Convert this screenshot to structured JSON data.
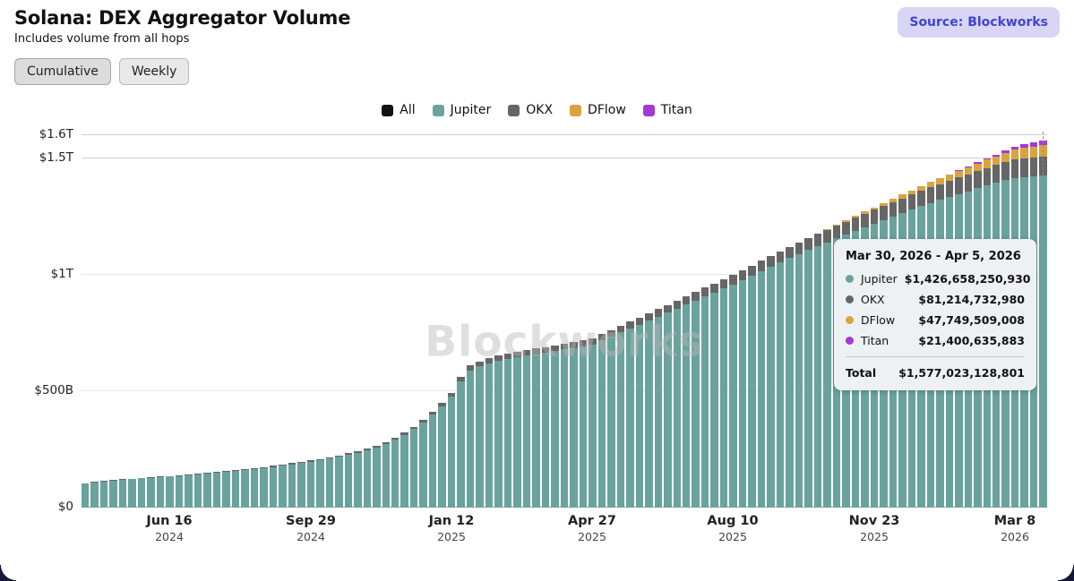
{
  "header": {
    "title": "Solana: DEX Aggregator Volume",
    "subtitle": "Includes volume from all hops",
    "source_label": "Source: Blockworks"
  },
  "toolbar": {
    "buttons": [
      {
        "label": "Cumulative",
        "active": true
      },
      {
        "label": "Weekly",
        "active": false
      }
    ]
  },
  "legend": [
    {
      "label": "All",
      "color": "#111111"
    },
    {
      "label": "Jupiter",
      "color": "#6aa39e"
    },
    {
      "label": "OKX",
      "color": "#666666"
    },
    {
      "label": "DFlow",
      "color": "#d9a440"
    },
    {
      "label": "Titan",
      "color": "#a43ad6"
    }
  ],
  "watermark": "Blockworks",
  "tooltip": {
    "title": "Mar 30, 2026 - Apr 5, 2026",
    "rows": [
      {
        "label": "Jupiter",
        "color": "#6aa39e",
        "value": "$1,426,658,250,930"
      },
      {
        "label": "OKX",
        "color": "#666666",
        "value": "$81,214,732,980"
      },
      {
        "label": "DFlow",
        "color": "#d9a440",
        "value": "$47,749,509,008"
      },
      {
        "label": "Titan",
        "color": "#a43ad6",
        "value": "$21,400,635,883"
      }
    ],
    "total_label": "Total",
    "total_value": "$1,577,023,128,801"
  },
  "chart_data": {
    "type": "bar",
    "stacked": true,
    "title": "Solana: DEX Aggregator Volume (Cumulative)",
    "unit": "billions USD",
    "ylim": [
      0,
      1615
    ],
    "grid": true,
    "legend_position": "top-center",
    "highlight_index": 102,
    "y_ticks": [
      {
        "value": 1600,
        "label": "$1.6T",
        "weight": "strong"
      },
      {
        "value": 1500,
        "label": "$1.5T",
        "weight": "strong"
      },
      {
        "value": 1000,
        "label": "$1T",
        "weight": "faint"
      },
      {
        "value": 500,
        "label": "$500B",
        "weight": "faint"
      },
      {
        "value": 0,
        "label": "$0",
        "weight": "axis"
      }
    ],
    "x_ticks": [
      {
        "index": 9,
        "label": "Jun 16",
        "year": "2024"
      },
      {
        "index": 24,
        "label": "Sep 29",
        "year": "2024"
      },
      {
        "index": 39,
        "label": "Jan 12",
        "year": "2025"
      },
      {
        "index": 54,
        "label": "Apr 27",
        "year": "2025"
      },
      {
        "index": 69,
        "label": "Aug 10",
        "year": "2025"
      },
      {
        "index": 84,
        "label": "Nov 23",
        "year": "2025"
      },
      {
        "index": 99,
        "label": "Mar 8",
        "year": "2026"
      }
    ],
    "series": [
      {
        "name": "Jupiter",
        "color": "#6aa39e",
        "values": [
          103,
          108,
          112,
          116,
          119,
          122,
          125,
          128,
          130,
          133,
          136,
          139,
          143,
          146,
          150,
          154,
          158,
          162,
          166,
          171,
          175,
          180,
          186,
          192,
          197,
          203,
          210,
          218,
          226,
          236,
          247,
          259,
          274,
          291,
          312,
          337,
          366,
          399,
          436,
          476,
          542,
          590,
          607,
          620,
          630,
          639,
          646,
          653,
          659,
          666,
          672,
          679,
          685,
          693,
          700,
          718,
          734,
          752,
          769,
          786,
          803,
          820,
          837,
          854,
          871,
          889,
          907,
          924,
          941,
          959,
          977,
          996,
          1015,
          1034,
          1052,
          1071,
          1088,
          1106,
          1123,
          1140,
          1156,
          1172,
          1189,
          1205,
          1220,
          1235,
          1250,
          1265,
          1279,
          1294,
          1308,
          1322,
          1334,
          1347,
          1359,
          1372,
          1383,
          1395,
          1406,
          1416,
          1420,
          1423,
          1426.66
        ]
      },
      {
        "name": "OKX",
        "color": "#666666",
        "values": [
          2,
          2,
          2,
          2,
          3,
          3,
          3,
          3,
          3,
          3,
          3,
          3,
          3,
          4,
          4,
          4,
          4,
          4,
          4,
          4,
          5,
          5,
          5,
          5,
          6,
          6,
          6,
          6,
          7,
          7,
          7,
          8,
          8,
          9,
          10,
          11,
          12,
          13,
          14,
          16,
          18,
          20,
          21,
          21,
          22,
          22,
          23,
          23,
          24,
          24,
          25,
          25,
          26,
          26,
          27,
          27,
          29,
          29,
          30,
          31,
          32,
          33,
          34,
          35,
          36,
          37,
          38,
          39,
          41,
          41,
          43,
          44,
          45,
          46,
          48,
          48,
          50,
          51,
          52,
          53,
          55,
          56,
          57,
          58,
          60,
          61,
          62,
          63,
          65,
          66,
          67,
          68,
          70,
          71,
          73,
          73,
          75,
          76,
          78,
          79,
          80,
          81,
          81.21
        ]
      },
      {
        "name": "DFlow",
        "color": "#d9a440",
        "values": [
          0,
          0,
          0,
          0,
          0,
          0,
          0,
          0,
          0,
          0,
          0,
          0,
          0,
          0,
          0,
          0,
          0,
          0,
          0,
          0,
          0,
          0,
          0,
          0,
          0,
          0,
          0,
          0,
          0,
          0,
          0,
          0,
          0,
          0,
          0,
          0,
          0,
          0,
          0,
          0,
          0,
          0,
          0,
          0,
          0,
          0,
          0,
          0,
          0,
          0,
          0,
          0,
          0,
          0,
          0,
          0,
          0,
          0,
          0,
          0,
          0,
          0,
          0,
          0,
          0,
          0,
          0,
          0,
          0,
          0,
          0,
          0,
          0,
          0,
          0,
          0,
          0,
          0,
          1,
          2,
          3,
          5,
          6,
          8,
          10,
          12,
          14,
          16,
          18,
          20,
          23,
          25,
          27,
          29,
          31,
          33,
          36,
          38,
          40,
          42,
          44,
          46,
          47.75
        ]
      },
      {
        "name": "Titan",
        "color": "#a43ad6",
        "values": [
          0,
          0,
          0,
          0,
          0,
          0,
          0,
          0,
          0,
          0,
          0,
          0,
          0,
          0,
          0,
          0,
          0,
          0,
          0,
          0,
          0,
          0,
          0,
          0,
          0,
          0,
          0,
          0,
          0,
          0,
          0,
          0,
          0,
          0,
          0,
          0,
          0,
          0,
          0,
          0,
          0,
          0,
          0,
          0,
          0,
          0,
          0,
          0,
          0,
          0,
          0,
          0,
          0,
          0,
          0,
          0,
          0,
          0,
          0,
          0,
          0,
          0,
          0,
          0,
          0,
          0,
          0,
          0,
          0,
          0,
          0,
          0,
          0,
          0,
          0,
          0,
          0,
          0,
          0,
          0,
          0,
          0,
          0,
          0,
          0,
          0,
          0,
          0,
          0,
          0,
          0,
          0,
          1,
          2,
          3,
          5,
          6,
          8,
          10,
          13,
          16,
          19,
          21.4
        ]
      }
    ]
  }
}
